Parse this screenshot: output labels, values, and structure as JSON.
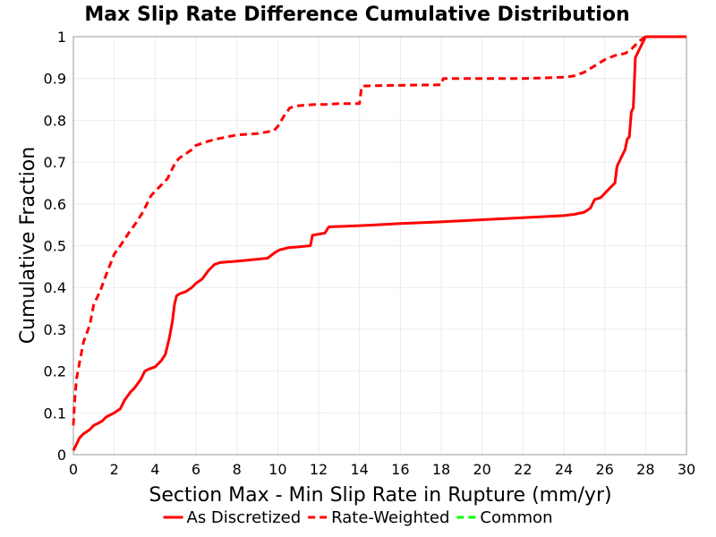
{
  "chart_data": {
    "type": "line",
    "title": "Max Slip Rate Difference Cumulative Distribution",
    "xlabel": "Section Max - Min Slip Rate in Rupture (mm/yr)",
    "ylabel": "Cumulative Fraction",
    "xlim": [
      0,
      30
    ],
    "ylim": [
      0,
      1
    ],
    "xticks": [
      0,
      2,
      4,
      6,
      8,
      10,
      12,
      14,
      16,
      18,
      20,
      22,
      24,
      26,
      28,
      30
    ],
    "yticks": [
      0,
      0.1,
      0.2,
      0.3,
      0.4,
      0.5,
      0.6,
      0.7,
      0.8,
      0.9,
      1
    ],
    "ytick_labels": [
      "0",
      "0.1",
      "0.2",
      "0.3",
      "0.4",
      "0.5",
      "0.6",
      "0.7",
      "0.8",
      "0.9",
      "1"
    ],
    "grid": true,
    "legend_position": "bottom",
    "series": [
      {
        "name": "As Discretized",
        "color": "#ff0000",
        "dash": "solid",
        "x": [
          0,
          0.1,
          0.2,
          0.3,
          0.5,
          0.8,
          1.0,
          1.2,
          1.4,
          1.6,
          2.0,
          2.3,
          2.5,
          2.8,
          3.0,
          3.3,
          3.5,
          3.7,
          4.0,
          4.3,
          4.5,
          4.7,
          4.85,
          4.95,
          5.05,
          5.2,
          5.5,
          5.8,
          6.0,
          6.3,
          6.6,
          6.9,
          7.2,
          7.8,
          8.5,
          9.5,
          9.9,
          10.1,
          10.5,
          11.0,
          11.6,
          11.7,
          12.3,
          12.5,
          13.5,
          14.5,
          16.0,
          18.0,
          20.0,
          22.0,
          24.0,
          24.5,
          25.0,
          25.3,
          25.5,
          25.8,
          26.0,
          26.3,
          26.5,
          26.6,
          26.8,
          27.0,
          27.1,
          27.2,
          27.3,
          27.4,
          27.5,
          27.6,
          27.7,
          27.9,
          28.0,
          28.2,
          30
        ],
        "y": [
          0.01,
          0.02,
          0.03,
          0.04,
          0.05,
          0.06,
          0.07,
          0.075,
          0.08,
          0.09,
          0.1,
          0.11,
          0.13,
          0.15,
          0.16,
          0.18,
          0.2,
          0.205,
          0.21,
          0.225,
          0.24,
          0.28,
          0.32,
          0.36,
          0.38,
          0.385,
          0.39,
          0.4,
          0.41,
          0.42,
          0.44,
          0.455,
          0.46,
          0.462,
          0.465,
          0.47,
          0.485,
          0.49,
          0.495,
          0.497,
          0.5,
          0.525,
          0.53,
          0.545,
          0.547,
          0.549,
          0.553,
          0.557,
          0.562,
          0.567,
          0.572,
          0.575,
          0.58,
          0.59,
          0.61,
          0.615,
          0.625,
          0.64,
          0.65,
          0.69,
          0.71,
          0.73,
          0.755,
          0.76,
          0.82,
          0.83,
          0.95,
          0.96,
          0.97,
          0.99,
          1.0,
          1.0,
          1.0
        ]
      },
      {
        "name": "Rate-Weighted",
        "color": "#ff0000",
        "dash": "dashed",
        "x": [
          0,
          0.05,
          0.15,
          0.3,
          0.5,
          0.8,
          1.0,
          1.3,
          1.6,
          2.0,
          2.3,
          2.7,
          3.0,
          3.4,
          3.8,
          4.2,
          4.6,
          5.0,
          5.2,
          5.5,
          5.8,
          6.0,
          6.3,
          6.6,
          7.0,
          7.5,
          8.0,
          9.0,
          9.8,
          10.0,
          10.3,
          10.6,
          11.0,
          11.8,
          12.3,
          13.0,
          14.0,
          14.1,
          14.2,
          15.0,
          18.0,
          18.1,
          20.0,
          22.0,
          24.0,
          24.5,
          25.0,
          25.5,
          26.0,
          26.5,
          27.0,
          27.3,
          27.5,
          27.7,
          28.0,
          30
        ],
        "y": [
          0.07,
          0.12,
          0.18,
          0.22,
          0.27,
          0.31,
          0.36,
          0.39,
          0.43,
          0.48,
          0.5,
          0.53,
          0.55,
          0.58,
          0.62,
          0.64,
          0.66,
          0.7,
          0.71,
          0.72,
          0.73,
          0.74,
          0.745,
          0.75,
          0.755,
          0.76,
          0.765,
          0.768,
          0.775,
          0.785,
          0.81,
          0.83,
          0.835,
          0.838,
          0.838,
          0.84,
          0.84,
          0.88,
          0.882,
          0.883,
          0.885,
          0.9,
          0.9,
          0.9,
          0.903,
          0.906,
          0.915,
          0.93,
          0.945,
          0.955,
          0.96,
          0.97,
          0.98,
          0.99,
          1.0,
          1.0
        ]
      },
      {
        "name": "Common",
        "color": "#00ff00",
        "dash": "dashed",
        "x": [],
        "y": []
      }
    ]
  }
}
